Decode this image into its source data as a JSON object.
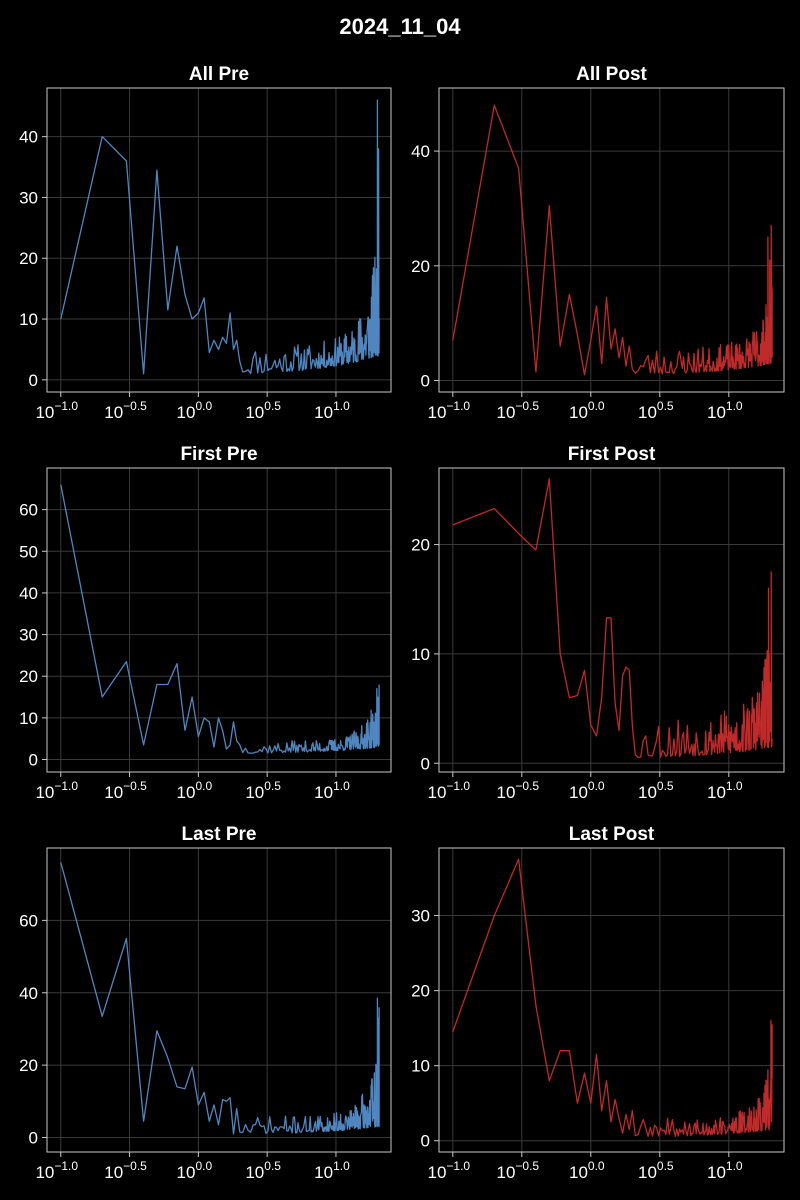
{
  "figure": {
    "title": "2024_11_04"
  },
  "colors": {
    "pre": "#4f86c0",
    "post": "#bf2a2a",
    "grid": "#3a3a3a",
    "frame": "#c8c8c8",
    "text": "#ffffff",
    "background": "#000000"
  },
  "chart_data": [
    {
      "id": "all-pre",
      "title": "All Pre",
      "type": "line",
      "color": "#4f86c0",
      "xscale": "log10",
      "xlim": [
        -1.1,
        1.4
      ],
      "ylim": [
        -2,
        48
      ],
      "xticks": [
        -1.0,
        -0.5,
        0.0,
        0.5,
        1.0
      ],
      "yticks": [
        0,
        10,
        20,
        30,
        40
      ],
      "grid": true,
      "lead": [
        [
          0.1,
          10
        ],
        [
          0.2,
          40
        ],
        [
          0.3,
          36
        ],
        [
          0.4,
          1
        ],
        [
          0.5,
          34.5
        ],
        [
          0.6,
          11.5
        ],
        [
          0.7,
          22
        ],
        [
          0.8,
          14
        ],
        [
          0.9,
          10
        ],
        [
          1.0,
          11
        ],
        [
          1.1,
          13.5
        ],
        [
          1.2,
          4.5
        ],
        [
          1.3,
          6.5
        ],
        [
          1.4,
          5
        ],
        [
          1.5,
          7
        ],
        [
          1.6,
          6
        ],
        [
          1.7,
          11
        ],
        [
          1.8,
          5
        ],
        [
          1.9,
          6.5
        ],
        [
          2.0,
          3
        ]
      ],
      "noise": {
        "seed": 11,
        "x_start": 2.1,
        "x_end": 20.6,
        "step": 0.1,
        "lo_start": 1.0,
        "lo_end": 4.0,
        "hi_start": 6.0,
        "hi_end": 25.0,
        "pow": 3.5
      },
      "spikes": [
        [
          20.0,
          46
        ],
        [
          20.2,
          30
        ],
        [
          20.4,
          38
        ],
        [
          20.6,
          10
        ]
      ]
    },
    {
      "id": "all-post",
      "title": "All Post",
      "type": "line",
      "color": "#bf2a2a",
      "xscale": "log10",
      "xlim": [
        -1.1,
        1.4
      ],
      "ylim": [
        -2,
        51
      ],
      "xticks": [
        -1.0,
        -0.5,
        0.0,
        0.5,
        1.0
      ],
      "yticks": [
        0,
        20,
        40
      ],
      "grid": true,
      "lead": [
        [
          0.1,
          7
        ],
        [
          0.2,
          48
        ],
        [
          0.3,
          37
        ],
        [
          0.4,
          1.5
        ],
        [
          0.5,
          30.5
        ],
        [
          0.6,
          6
        ],
        [
          0.7,
          15
        ],
        [
          0.8,
          8
        ],
        [
          0.9,
          1
        ],
        [
          1.0,
          7
        ],
        [
          1.1,
          13
        ],
        [
          1.2,
          3
        ],
        [
          1.3,
          14.5
        ],
        [
          1.4,
          5.5
        ],
        [
          1.5,
          9
        ],
        [
          1.6,
          4
        ],
        [
          1.7,
          7.5
        ],
        [
          1.8,
          2.5
        ],
        [
          1.9,
          6
        ],
        [
          2.0,
          2
        ]
      ],
      "noise": {
        "seed": 23,
        "x_start": 2.1,
        "x_end": 20.6,
        "step": 0.1,
        "lo_start": 1.0,
        "lo_end": 3.0,
        "hi_start": 6.0,
        "hi_end": 17.0,
        "pow": 3.5
      },
      "spikes": [
        [
          19.2,
          25
        ],
        [
          19.8,
          21
        ],
        [
          20.3,
          27
        ],
        [
          20.6,
          4
        ]
      ]
    },
    {
      "id": "first-pre",
      "title": "First Pre",
      "type": "line",
      "color": "#4f86c0",
      "xscale": "log10",
      "xlim": [
        -1.1,
        1.4
      ],
      "ylim": [
        -3,
        70
      ],
      "xticks": [
        -1.0,
        -0.5,
        0.0,
        0.5,
        1.0
      ],
      "yticks": [
        0,
        10,
        20,
        30,
        40,
        50,
        60
      ],
      "grid": true,
      "lead": [
        [
          0.1,
          66
        ],
        [
          0.2,
          15
        ],
        [
          0.3,
          23.5
        ],
        [
          0.4,
          3.5
        ],
        [
          0.5,
          18
        ],
        [
          0.6,
          18
        ],
        [
          0.7,
          23
        ],
        [
          0.8,
          7
        ],
        [
          0.9,
          15
        ],
        [
          1.0,
          5.5
        ],
        [
          1.1,
          10
        ],
        [
          1.2,
          9
        ],
        [
          1.3,
          3
        ],
        [
          1.4,
          10
        ],
        [
          1.5,
          7
        ],
        [
          1.6,
          2.5
        ],
        [
          1.7,
          3.5
        ],
        [
          1.8,
          9
        ],
        [
          1.9,
          4.5
        ],
        [
          2.0,
          3.5
        ]
      ],
      "noise": {
        "seed": 37,
        "x_start": 2.1,
        "x_end": 20.6,
        "step": 0.1,
        "lo_start": 1.5,
        "lo_end": 3.0,
        "hi_start": 4.5,
        "hi_end": 17.0,
        "pow": 3.5
      },
      "spikes": [
        [
          19.8,
          17
        ],
        [
          20.2,
          10
        ],
        [
          20.6,
          18
        ]
      ]
    },
    {
      "id": "first-post",
      "title": "First Post",
      "type": "line",
      "color": "#bf2a2a",
      "xscale": "log10",
      "xlim": [
        -1.1,
        1.4
      ],
      "ylim": [
        -0.8,
        27
      ],
      "xticks": [
        -1.0,
        -0.5,
        0.0,
        0.5,
        1.0
      ],
      "yticks": [
        0,
        10,
        20
      ],
      "grid": true,
      "lead": [
        [
          0.1,
          21.8
        ],
        [
          0.2,
          23.3
        ],
        [
          0.3,
          21
        ],
        [
          0.4,
          19.5
        ],
        [
          0.5,
          26
        ],
        [
          0.6,
          10
        ],
        [
          0.7,
          6
        ],
        [
          0.8,
          6.2
        ],
        [
          0.9,
          8.5
        ],
        [
          1.0,
          3.5
        ],
        [
          1.1,
          2.5
        ],
        [
          1.2,
          6
        ],
        [
          1.3,
          13.3
        ],
        [
          1.4,
          13.3
        ],
        [
          1.5,
          5.5
        ],
        [
          1.6,
          3
        ],
        [
          1.7,
          8
        ],
        [
          1.8,
          8.8
        ],
        [
          1.9,
          8.5
        ],
        [
          2.0,
          3.5
        ]
      ],
      "noise": {
        "seed": 53,
        "x_start": 2.1,
        "x_end": 20.6,
        "step": 0.1,
        "lo_start": 0.5,
        "lo_end": 1.5,
        "hi_start": 4.5,
        "hi_end": 13.0,
        "pow": 3.5
      },
      "spikes": [
        [
          19.4,
          16
        ],
        [
          20.3,
          17.5
        ],
        [
          20.6,
          2
        ]
      ]
    },
    {
      "id": "last-pre",
      "title": "Last Pre",
      "type": "line",
      "color": "#4f86c0",
      "xscale": "log10",
      "xlim": [
        -1.1,
        1.4
      ],
      "ylim": [
        -4,
        80
      ],
      "xticks": [
        -1.0,
        -0.5,
        0.0,
        0.5,
        1.0
      ],
      "yticks": [
        0,
        20,
        40,
        60
      ],
      "grid": true,
      "lead": [
        [
          0.1,
          76
        ],
        [
          0.2,
          33.5
        ],
        [
          0.3,
          55
        ],
        [
          0.4,
          4.5
        ],
        [
          0.5,
          29.5
        ],
        [
          0.6,
          22
        ],
        [
          0.7,
          14
        ],
        [
          0.8,
          13.5
        ],
        [
          0.9,
          19.5
        ],
        [
          1.0,
          9
        ],
        [
          1.1,
          12.5
        ],
        [
          1.2,
          4.5
        ],
        [
          1.3,
          9
        ],
        [
          1.4,
          3.5
        ],
        [
          1.5,
          10.5
        ],
        [
          1.6,
          10
        ],
        [
          1.7,
          11
        ],
        [
          1.8,
          1
        ],
        [
          1.9,
          8
        ],
        [
          2.0,
          1.5
        ]
      ],
      "noise": {
        "seed": 71,
        "x_start": 2.1,
        "x_end": 20.6,
        "step": 0.1,
        "lo_start": 1.0,
        "lo_end": 3.0,
        "hi_start": 6.0,
        "hi_end": 25.0,
        "pow": 3.5
      },
      "spikes": [
        [
          20.0,
          38.5
        ],
        [
          20.3,
          33
        ],
        [
          20.6,
          36
        ]
      ]
    },
    {
      "id": "last-post",
      "title": "Last Post",
      "type": "line",
      "color": "#bf2a2a",
      "xscale": "log10",
      "xlim": [
        -1.1,
        1.4
      ],
      "ylim": [
        -1.5,
        39
      ],
      "xticks": [
        -1.0,
        -0.5,
        0.0,
        0.5,
        1.0
      ],
      "yticks": [
        0,
        10,
        20,
        30
      ],
      "grid": true,
      "lead": [
        [
          0.1,
          14.5
        ],
        [
          0.2,
          30
        ],
        [
          0.3,
          37.5
        ],
        [
          0.4,
          18
        ],
        [
          0.5,
          8
        ],
        [
          0.6,
          12
        ],
        [
          0.7,
          12
        ],
        [
          0.8,
          5
        ],
        [
          0.9,
          9
        ],
        [
          1.0,
          5
        ],
        [
          1.1,
          11.5
        ],
        [
          1.2,
          4
        ],
        [
          1.3,
          8
        ],
        [
          1.4,
          2.5
        ],
        [
          1.5,
          5.5
        ],
        [
          1.6,
          3
        ],
        [
          1.7,
          1
        ],
        [
          1.8,
          3.5
        ],
        [
          1.9,
          1.5
        ],
        [
          2.0,
          4
        ]
      ],
      "noise": {
        "seed": 89,
        "x_start": 2.1,
        "x_end": 20.6,
        "step": 0.1,
        "lo_start": 0.5,
        "lo_end": 1.5,
        "hi_start": 3.0,
        "hi_end": 12.0,
        "pow": 3.5
      },
      "spikes": [
        [
          20.2,
          16
        ],
        [
          20.5,
          13
        ],
        [
          20.6,
          15.5
        ]
      ]
    }
  ]
}
